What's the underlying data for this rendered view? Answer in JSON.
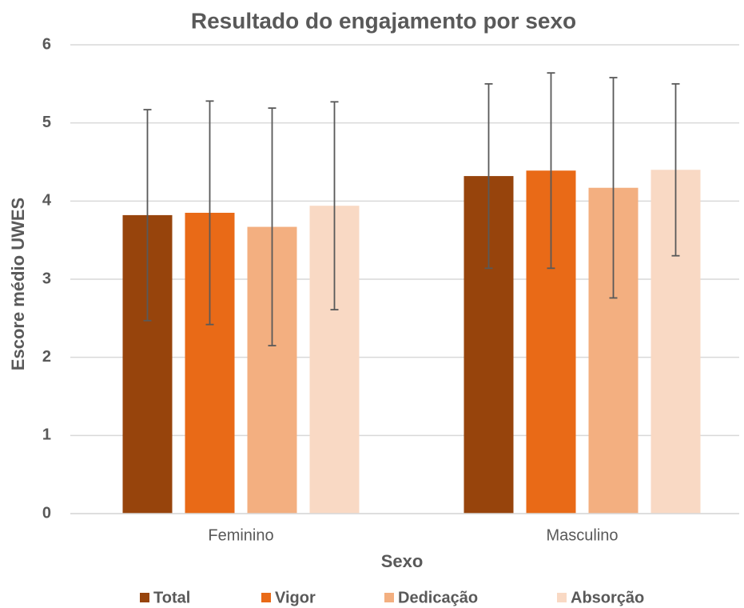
{
  "chart_data": {
    "type": "bar",
    "title": "Resultado do engajamento por sexo",
    "x_label": "Sexo",
    "y_label": "Escore médio UWES",
    "categories": [
      "Feminino",
      "Masculino"
    ],
    "series": [
      {
        "name": "Total",
        "color": "#97440c",
        "values": [
          3.82,
          4.32
        ],
        "errors": [
          1.35,
          1.18
        ]
      },
      {
        "name": "Vigor",
        "color": "#e96a17",
        "values": [
          3.85,
          4.39
        ],
        "errors": [
          1.43,
          1.25
        ]
      },
      {
        "name": "Dedicação",
        "color": "#f3af80",
        "values": [
          3.67,
          4.17
        ],
        "errors": [
          1.52,
          1.41
        ]
      },
      {
        "name": "Absorção",
        "color": "#f9d9c4",
        "values": [
          3.94,
          4.4
        ],
        "errors": [
          1.33,
          1.1
        ]
      }
    ],
    "ylim": [
      0,
      6
    ],
    "yticks": [
      0,
      1,
      2,
      3,
      4,
      5,
      6
    ],
    "grid": true,
    "legend": "bottom"
  }
}
